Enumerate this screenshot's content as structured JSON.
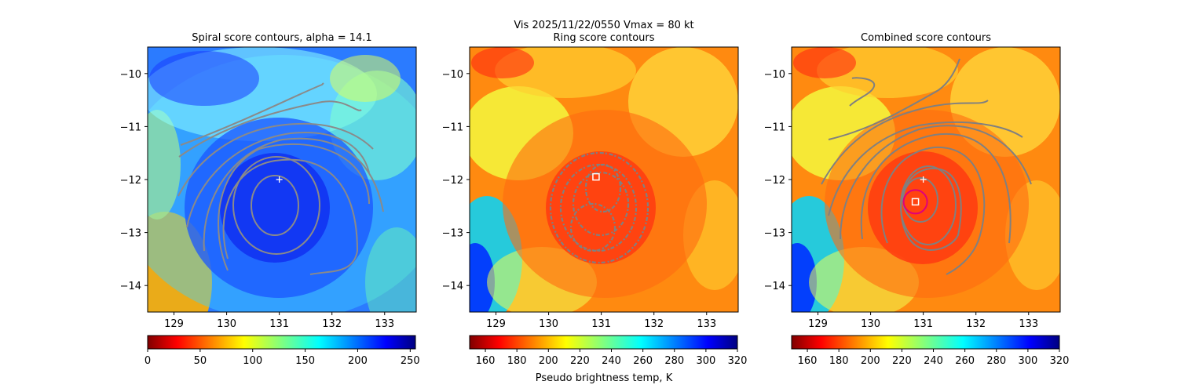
{
  "suptitle": "Vis  2025/11/22/0550    Vmax = 80 kt",
  "colorbar_label": "Pseudo brightness temp, K",
  "chart_data": [
    {
      "type": "heatmap",
      "title": "Spiral score contours, alpha = 14.1",
      "xlim": [
        128.5,
        133.6
      ],
      "ylim": [
        -14.5,
        -9.5
      ],
      "xticks": [
        "129",
        "130",
        "131",
        "132",
        "133"
      ],
      "xtick_values": [
        129,
        130,
        131,
        132,
        133
      ],
      "yticks": [
        "−10",
        "−11",
        "−12",
        "−13",
        "−14"
      ],
      "ytick_values": [
        -10,
        -11,
        -12,
        -13,
        -14
      ],
      "colormap": "jet",
      "colormap_reversed": true,
      "color_range": [
        0,
        255
      ],
      "colorbar_ticks": [
        "0",
        "50",
        "100",
        "150",
        "200",
        "250"
      ],
      "colorbar_tick_values": [
        0,
        50,
        100,
        150,
        200,
        250
      ],
      "markers": [
        {
          "type": "plus",
          "x": 131.0,
          "y": -12.0,
          "color": "#ffffff"
        }
      ],
      "contour_color": "#808080",
      "contours_center": {
        "x": 130.8,
        "y": -12.65
      }
    },
    {
      "type": "heatmap",
      "title": "Ring score contours",
      "xlim": [
        128.5,
        133.6
      ],
      "ylim": [
        -14.5,
        -9.5
      ],
      "xticks": [
        "129",
        "130",
        "131",
        "132",
        "133"
      ],
      "xtick_values": [
        129,
        130,
        131,
        132,
        133
      ],
      "yticks": [
        "−10",
        "−11",
        "−12",
        "−13",
        "−14"
      ],
      "ytick_values": [
        -10,
        -11,
        -12,
        -13,
        -14
      ],
      "colormap": "jet",
      "colormap_reversed": true,
      "color_range": [
        150,
        320
      ],
      "colorbar_ticks": [
        "160",
        "180",
        "200",
        "220",
        "240",
        "260",
        "280",
        "300",
        "320"
      ],
      "colorbar_tick_values": [
        160,
        180,
        200,
        220,
        240,
        260,
        280,
        300,
        320
      ],
      "markers": [
        {
          "type": "square",
          "x": 130.9,
          "y": -11.95,
          "color": "#ffffff"
        }
      ],
      "contour_color": "#808080",
      "contours_center": {
        "x": 130.9,
        "y": -12.6
      }
    },
    {
      "type": "heatmap",
      "title": "Combined score contours",
      "xlim": [
        128.5,
        133.6
      ],
      "ylim": [
        -14.5,
        -9.5
      ],
      "xticks": [
        "129",
        "130",
        "131",
        "132",
        "133"
      ],
      "xtick_values": [
        129,
        130,
        131,
        132,
        133
      ],
      "yticks": [
        "−10",
        "−11",
        "−12",
        "−13",
        "−14"
      ],
      "ytick_values": [
        -10,
        -11,
        -12,
        -13,
        -14
      ],
      "colormap": "jet",
      "colormap_reversed": true,
      "color_range": [
        150,
        320
      ],
      "colorbar_ticks": [
        "160",
        "180",
        "200",
        "220",
        "240",
        "260",
        "280",
        "300",
        "320"
      ],
      "colorbar_tick_values": [
        160,
        180,
        200,
        220,
        240,
        260,
        280,
        300,
        320
      ],
      "markers": [
        {
          "type": "plus",
          "x": 131.0,
          "y": -12.0,
          "color": "#ffffff"
        },
        {
          "type": "square",
          "x": 130.85,
          "y": -12.42,
          "color": "#ffffff"
        },
        {
          "type": "circle",
          "x": 130.85,
          "y": -12.42,
          "color": "#e0007a"
        }
      ],
      "contour_color": "#808080",
      "contours_center": {
        "x": 130.9,
        "y": -12.7
      }
    }
  ]
}
